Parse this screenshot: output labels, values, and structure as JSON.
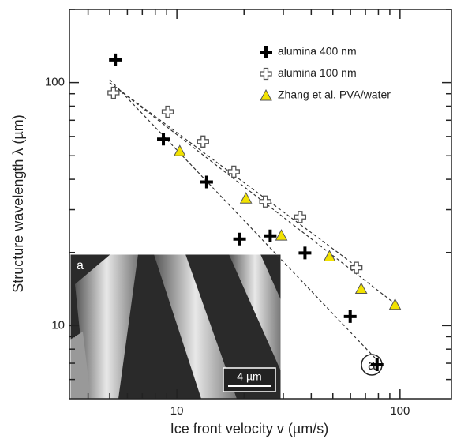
{
  "chart_data": {
    "type": "scatter",
    "xlabel": "Ice front velocity v (µm/s)",
    "ylabel": "Structure wavelength λ (µm)",
    "xscale": "log",
    "yscale": "log",
    "xlim": [
      3.3,
      170
    ],
    "ylim": [
      5,
      200
    ],
    "xticks": [
      10,
      100
    ],
    "yticks": [
      10,
      100
    ],
    "xticks_minor": [
      4,
      5,
      6,
      7,
      8,
      9,
      20,
      30,
      40,
      50,
      60,
      70,
      80,
      90
    ],
    "yticks_minor": [
      6,
      7,
      8,
      9,
      20,
      30,
      40,
      50,
      60,
      70,
      80,
      90,
      200
    ],
    "legend": "upper right",
    "series": [
      {
        "name": "alumina 400 nm",
        "marker": "plus",
        "color": "#000000",
        "x": [
          5.3,
          8.7,
          13.6,
          19.1,
          26.2,
          37.5,
          59.8,
          78.9
        ],
        "values": [
          124,
          58.5,
          39,
          22.7,
          23.4,
          19.9,
          10.9,
          6.9
        ]
      },
      {
        "name": "alumina 100 nm",
        "marker": "open-plus",
        "color": "#ffffff",
        "x": [
          5.2,
          9.1,
          13.1,
          18,
          24.9,
          35.7,
          63.8
        ],
        "values": [
          90.8,
          75.9,
          57.2,
          43,
          32.4,
          28,
          17.3
        ]
      },
      {
        "name": "Zhang et al. PVA/water",
        "marker": "triangle",
        "color": "#f2e200",
        "x": [
          10.3,
          20.4,
          29.4,
          48.3,
          67,
          95
        ],
        "values": [
          52.3,
          33.4,
          23.5,
          19.3,
          14.2,
          12.2
        ]
      }
    ],
    "fits": [
      {
        "x": [
          5,
          79
        ],
        "y": [
          103,
          7.2
        ]
      },
      {
        "x": [
          5,
          64
        ],
        "y": [
          100,
          17.5
        ]
      },
      {
        "x": [
          5,
          95
        ],
        "y": [
          100,
          12.3
        ]
      }
    ],
    "annotation": "a",
    "inset": {
      "label": "a",
      "scale_bar": "4 µm"
    }
  }
}
